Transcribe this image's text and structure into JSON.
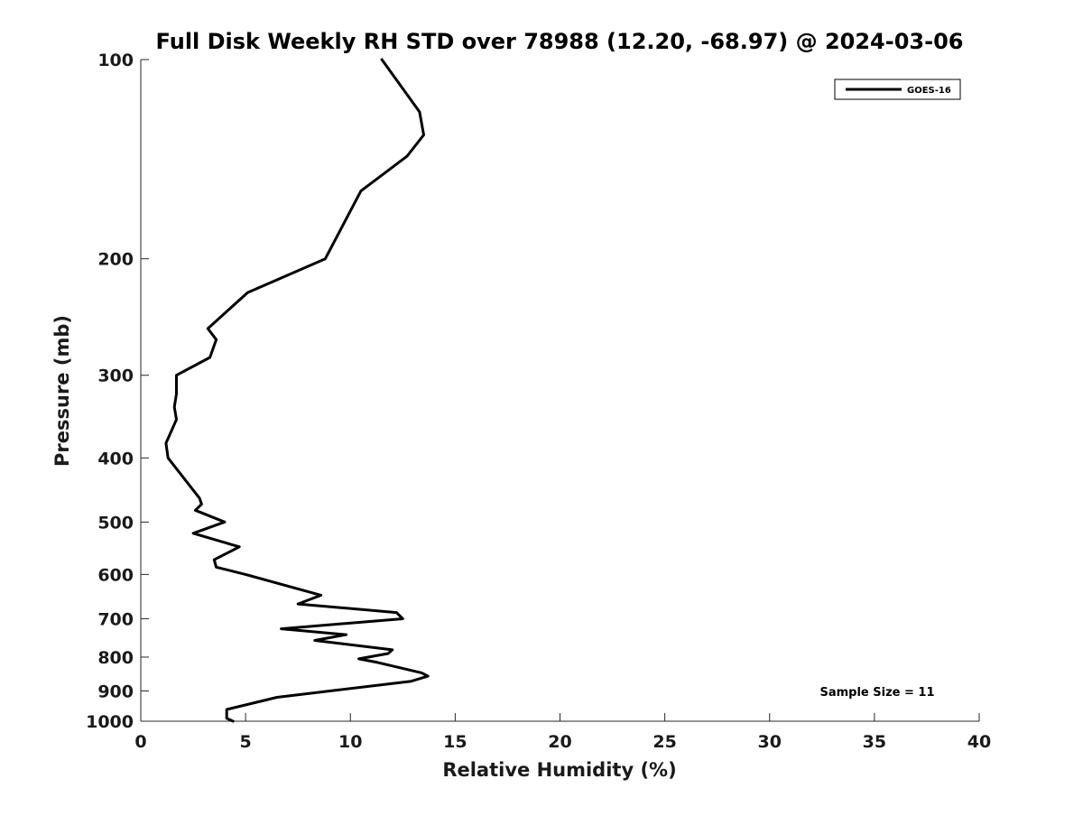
{
  "chart_data": {
    "type": "line",
    "title": "Full Disk Weekly RH STD over 78988 (12.20, -68.97) @ 2024-03-06",
    "xlabel": "Relative Humidity (%)",
    "ylabel": "Pressure (mb)",
    "xlim": [
      0,
      40
    ],
    "ylim": [
      100,
      1000
    ],
    "y_scale": "log",
    "y_reversed": true,
    "x_ticks": [
      "0",
      "5",
      "10",
      "15",
      "20",
      "25",
      "30",
      "35",
      "40"
    ],
    "y_ticks": [
      "100",
      "200",
      "300",
      "400",
      "500",
      "600",
      "700",
      "800",
      "900",
      "1000"
    ],
    "grid": false,
    "legend_position": "top-right",
    "annotation": "Sample Size = 11",
    "series": [
      {
        "name": "GOES-16",
        "color": "#000000",
        "x": [
          11.5,
          13.3,
          13.5,
          12.7,
          10.5,
          8.8,
          5.1,
          3.2,
          3.6,
          3.3,
          1.7,
          1.7,
          1.6,
          1.7,
          1.2,
          1.3,
          2.8,
          2.9,
          2.6,
          4.0,
          2.5,
          4.7,
          3.5,
          3.6,
          5.0,
          8.6,
          7.5,
          12.2,
          12.5,
          6.7,
          9.8,
          8.3,
          12.0,
          11.8,
          10.4,
          11.3,
          13.4,
          13.7,
          12.9,
          6.5,
          4.1,
          4.1,
          4.4
        ],
        "y": [
          100,
          120,
          130,
          140,
          158,
          200,
          225,
          255,
          265,
          282,
          300,
          320,
          335,
          350,
          380,
          400,
          460,
          470,
          480,
          500,
          520,
          545,
          570,
          585,
          600,
          645,
          665,
          685,
          700,
          725,
          740,
          755,
          780,
          790,
          805,
          815,
          845,
          855,
          870,
          920,
          960,
          990,
          1000
        ]
      }
    ]
  }
}
